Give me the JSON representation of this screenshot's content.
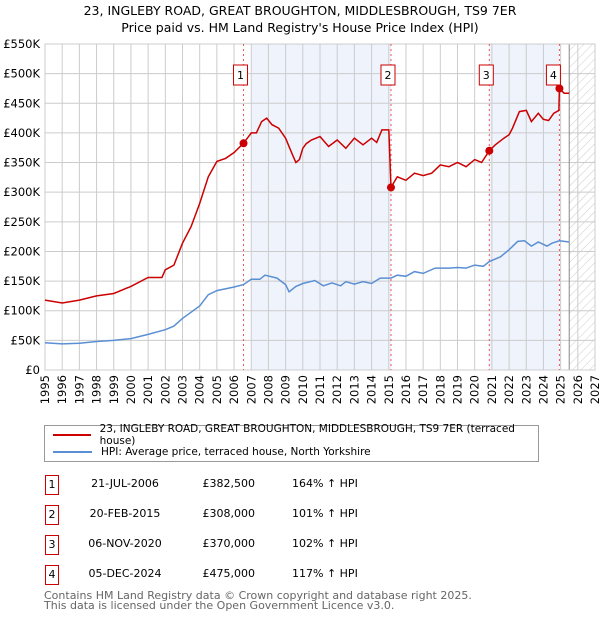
{
  "title": "23, INGLEBY ROAD, GREAT BROUGHTON, MIDDLESBROUGH, TS9 7ER",
  "subtitle": "Price paid vs. HM Land Registry's House Price Index (HPI)",
  "colors": {
    "property": "#cc0000",
    "hpi": "#5b8fd4",
    "shade": "#eef3fc"
  },
  "chart_data": {
    "type": "line",
    "xlim": [
      1995,
      2027
    ],
    "ylim": [
      0,
      550000
    ],
    "y_ticks": [
      0,
      50000,
      100000,
      150000,
      200000,
      250000,
      300000,
      350000,
      400000,
      450000,
      500000,
      550000
    ],
    "y_tick_labels": [
      "£0",
      "£50K",
      "£100K",
      "£150K",
      "£200K",
      "£250K",
      "£300K",
      "£350K",
      "£400K",
      "£450K",
      "£500K",
      "£550K"
    ],
    "x_tick_labels": [
      "1995",
      "1996",
      "1997",
      "1998",
      "1999",
      "2000",
      "2001",
      "2002",
      "2003",
      "2004",
      "2005",
      "2006",
      "2007",
      "2008",
      "2009",
      "2010",
      "2011",
      "2012",
      "2013",
      "2014",
      "2015",
      "2016",
      "2017",
      "2018",
      "2019",
      "2020",
      "2021",
      "2022",
      "2023",
      "2024",
      "2025",
      "2026",
      "2027"
    ],
    "grid": true,
    "forecast_from": 2025.5,
    "series": [
      {
        "name": "23, INGLEBY ROAD, GREAT BROUGHTON, MIDDLESBROUGH, TS9 7ER (terraced house)",
        "points": [
          [
            1995,
            118000
          ],
          [
            1996,
            113000
          ],
          [
            1997,
            118000
          ],
          [
            1998,
            125000
          ],
          [
            1999,
            129000
          ],
          [
            2000,
            141000
          ],
          [
            2001,
            156000
          ],
          [
            2001.8,
            156000
          ],
          [
            2002,
            169000
          ],
          [
            2002.5,
            177000
          ],
          [
            2003,
            214000
          ],
          [
            2003.5,
            242000
          ],
          [
            2004,
            281000
          ],
          [
            2004.5,
            326000
          ],
          [
            2005,
            352000
          ],
          [
            2005.5,
            357000
          ],
          [
            2006,
            367000
          ],
          [
            2006.55,
            382500
          ],
          [
            2007,
            400000
          ],
          [
            2007.3,
            400000
          ],
          [
            2007.6,
            419000
          ],
          [
            2007.9,
            425000
          ],
          [
            2008.2,
            414000
          ],
          [
            2008.6,
            408000
          ],
          [
            2009,
            391000
          ],
          [
            2009.4,
            363000
          ],
          [
            2009.6,
            350000
          ],
          [
            2009.8,
            355000
          ],
          [
            2010,
            374000
          ],
          [
            2010.2,
            382000
          ],
          [
            2010.5,
            388000
          ],
          [
            2011,
            394000
          ],
          [
            2011.5,
            377000
          ],
          [
            2012,
            388000
          ],
          [
            2012.5,
            374000
          ],
          [
            2013,
            391000
          ],
          [
            2013.5,
            380000
          ],
          [
            2014,
            391000
          ],
          [
            2014.3,
            384000
          ],
          [
            2014.6,
            405000
          ],
          [
            2015.0,
            405000
          ],
          [
            2015.13,
            308000
          ],
          [
            2015.5,
            326000
          ],
          [
            2016,
            320000
          ],
          [
            2016.5,
            332000
          ],
          [
            2017,
            328000
          ],
          [
            2017.5,
            332000
          ],
          [
            2018,
            346000
          ],
          [
            2018.5,
            343000
          ],
          [
            2019,
            350000
          ],
          [
            2019.5,
            343000
          ],
          [
            2020,
            355000
          ],
          [
            2020.4,
            350000
          ],
          [
            2020.85,
            370000
          ],
          [
            2021.2,
            380000
          ],
          [
            2021.7,
            391000
          ],
          [
            2022,
            397000
          ],
          [
            2022.2,
            408000
          ],
          [
            2022.6,
            436000
          ],
          [
            2023,
            438000
          ],
          [
            2023.3,
            419000
          ],
          [
            2023.7,
            433000
          ],
          [
            2024,
            423000
          ],
          [
            2024.3,
            421000
          ],
          [
            2024.6,
            433000
          ],
          [
            2024.9,
            438000
          ],
          [
            2024.93,
            475000
          ],
          [
            2025.2,
            467000
          ],
          [
            2025.5,
            467000
          ]
        ]
      },
      {
        "name": "HPI: Average price, terraced house, North Yorkshire",
        "points": [
          [
            1995,
            46000
          ],
          [
            1996,
            44000
          ],
          [
            1997,
            45000
          ],
          [
            1998,
            48000
          ],
          [
            1999,
            50000
          ],
          [
            2000,
            53000
          ],
          [
            2001,
            60000
          ],
          [
            2002,
            68000
          ],
          [
            2002.5,
            74000
          ],
          [
            2003,
            87000
          ],
          [
            2004,
            108000
          ],
          [
            2004.5,
            127000
          ],
          [
            2005,
            134000
          ],
          [
            2006,
            140000
          ],
          [
            2006.55,
            144000
          ],
          [
            2007,
            153000
          ],
          [
            2007.5,
            153000
          ],
          [
            2007.8,
            160000
          ],
          [
            2008.5,
            155000
          ],
          [
            2009,
            144000
          ],
          [
            2009.2,
            132000
          ],
          [
            2009.6,
            141000
          ],
          [
            2010,
            146000
          ],
          [
            2010.7,
            151000
          ],
          [
            2011.2,
            142000
          ],
          [
            2011.7,
            147000
          ],
          [
            2012.2,
            142000
          ],
          [
            2012.5,
            149000
          ],
          [
            2013,
            145000
          ],
          [
            2013.5,
            149000
          ],
          [
            2014,
            146000
          ],
          [
            2014.5,
            155000
          ],
          [
            2015.13,
            155000
          ],
          [
            2015.5,
            160000
          ],
          [
            2016,
            158000
          ],
          [
            2016.5,
            166000
          ],
          [
            2017,
            163000
          ],
          [
            2017.7,
            172000
          ],
          [
            2018.5,
            172000
          ],
          [
            2019,
            173000
          ],
          [
            2019.5,
            172000
          ],
          [
            2020,
            177000
          ],
          [
            2020.5,
            175000
          ],
          [
            2020.85,
            183000
          ],
          [
            2021.5,
            191000
          ],
          [
            2022,
            203000
          ],
          [
            2022.5,
            217000
          ],
          [
            2022.9,
            218000
          ],
          [
            2023.3,
            209000
          ],
          [
            2023.7,
            216000
          ],
          [
            2024.2,
            209000
          ],
          [
            2024.5,
            214000
          ],
          [
            2024.93,
            218000
          ],
          [
            2025.5,
            216000
          ]
        ]
      }
    ],
    "sales": [
      {
        "label": "1",
        "x": 2006.55,
        "y": 382500,
        "date": "21-JUL-2006",
        "price": "£382,500",
        "hpi": "164% ↑ HPI"
      },
      {
        "label": "2",
        "x": 2015.13,
        "y": 308000,
        "date": "20-FEB-2015",
        "price": "£308,000",
        "hpi": "101% ↑ HPI"
      },
      {
        "label": "3",
        "x": 2020.85,
        "y": 370000,
        "date": "06-NOV-2020",
        "price": "£370,000",
        "hpi": "102% ↑ HPI"
      },
      {
        "label": "4",
        "x": 2024.93,
        "y": 475000,
        "date": "05-DEC-2024",
        "price": "£475,000",
        "hpi": "117% ↑ HPI"
      }
    ],
    "shaded_ranges": [
      [
        2007,
        2015.13
      ],
      [
        2020.85,
        2024.93
      ]
    ]
  },
  "footer": [
    "Contains HM Land Registry data © Crown copyright and database right 2025.",
    "This data is licensed under the Open Government Licence v3.0."
  ]
}
